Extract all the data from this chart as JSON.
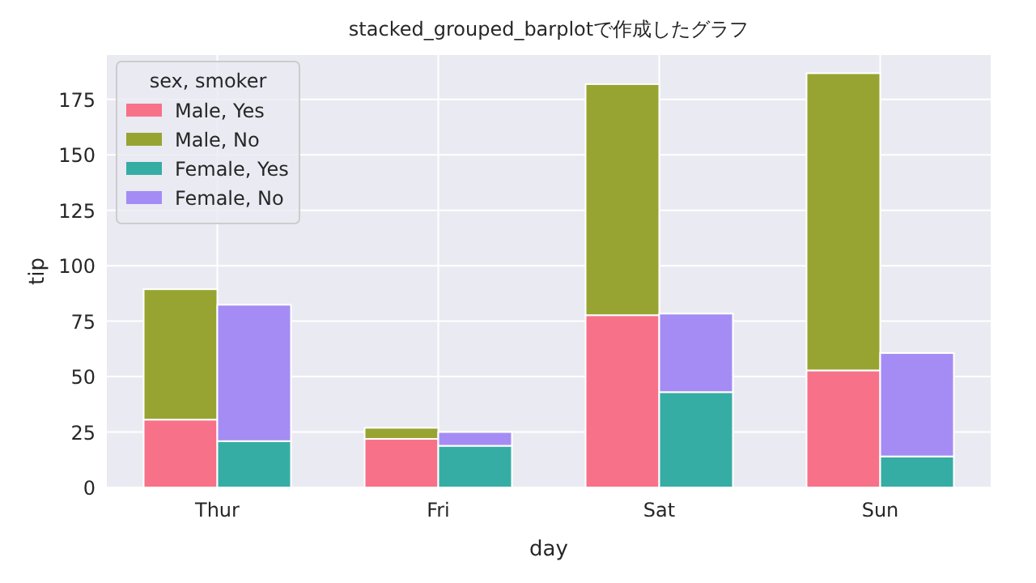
{
  "chart_data": [
    {
      "type": "bar",
      "title": "stacked_grouped_barplotで作成したグラフ",
      "xlabel": "day",
      "ylabel": "tip",
      "legend_title": "sex, smoker",
      "stacked": true,
      "categories": [
        "Thur",
        "Fri",
        "Sat",
        "Sun"
      ],
      "series": [
        {
          "name": "Male, Yes",
          "color": "#f77189",
          "values": [
            30.6,
            21.9,
            77.7,
            52.8
          ]
        },
        {
          "name": "Male, No",
          "color": "#97a431",
          "values": [
            58.8,
            5.0,
            104.2,
            134.0
          ]
        }
      ],
      "ylim": [
        0,
        195
      ],
      "yticks": [
        0,
        25,
        50,
        75,
        100,
        125,
        150,
        175
      ],
      "grid": true,
      "legend": "top left"
    },
    {
      "type": "bar",
      "stacked": true,
      "categories": [
        null,
        null,
        null,
        null
      ],
      "series": [
        {
          "name": "Female, Yes",
          "color": "#36ada4",
          "values": [
            20.9,
            18.8,
            43.0,
            14.0
          ]
        },
        {
          "name": "Female, No",
          "color": "#a48cf4",
          "values": [
            61.5,
            6.2,
            35.4,
            46.6
          ]
        }
      ],
      "ylim": [
        0,
        195
      ],
      "legend": "top left"
    }
  ]
}
